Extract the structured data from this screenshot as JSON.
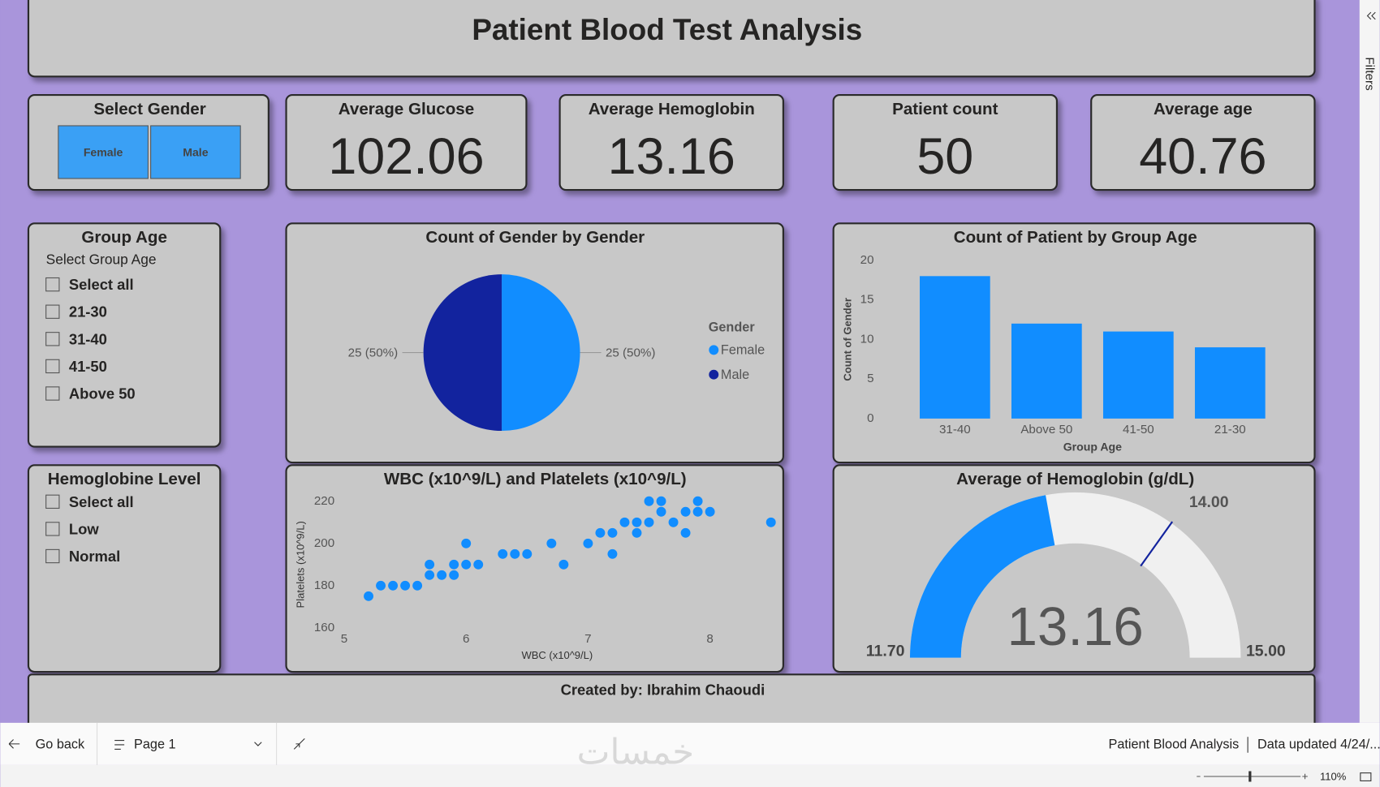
{
  "header": {
    "title": "Patient Blood Test Analysis"
  },
  "filters_pane": {
    "label": "Filters"
  },
  "gender_slicer": {
    "title": "Select Gender",
    "options": [
      "Female",
      "Male"
    ]
  },
  "cards": [
    {
      "title": "Average Glucose",
      "value": 102.06
    },
    {
      "title": "Average Hemoglobin",
      "value": 13.16
    },
    {
      "title": "Patient count",
      "value": 50
    },
    {
      "title": "Average age",
      "value": 40.76
    }
  ],
  "group_age_slicer": {
    "title": "Group Age",
    "subtitle": "Select Group Age",
    "options": [
      "Select all",
      "21-30",
      "31-40",
      "41-50",
      "Above 50"
    ]
  },
  "hemoglobin_slicer": {
    "title": "Hemoglobine Level",
    "options": [
      "Select all",
      "Low",
      "Normal"
    ]
  },
  "chart_data": [
    {
      "type": "pie",
      "title": "Count of Gender by Gender",
      "legend_title": "Gender",
      "categories": [
        "Female",
        "Male"
      ],
      "values": [
        25,
        25
      ],
      "value_labels": [
        "25 (50%)",
        "25 (50%)"
      ],
      "colors": [
        "#118DFF",
        "#12239E"
      ]
    },
    {
      "type": "bar",
      "title": "Count of Patient by Group Age",
      "x_label": "Group Age",
      "y_label": "Count of Gender",
      "categories": [
        "31-40",
        "Above 50",
        "41-50",
        "21-30"
      ],
      "values": [
        18,
        12,
        11,
        9
      ],
      "color": "#118DFF",
      "ylim": [
        0,
        20
      ],
      "yticks": [
        0,
        5,
        10,
        15,
        20
      ],
      "grid": false
    },
    {
      "type": "scatter",
      "title": "WBC (x10^9/L) and Platelets (x10^9/L)",
      "x_label": "WBC (x10^9/L)",
      "y_label": "Platelets (x10^9/L)",
      "x": [
        5.2,
        5.3,
        5.4,
        5.5,
        5.6,
        5.7,
        5.7,
        5.8,
        5.9,
        5.9,
        6.0,
        6.0,
        6.1,
        6.3,
        6.4,
        6.5,
        6.7,
        6.8,
        7.0,
        7.1,
        7.2,
        7.2,
        7.3,
        7.4,
        7.4,
        7.5,
        7.5,
        7.6,
        7.6,
        7.7,
        7.8,
        7.8,
        7.9,
        7.9,
        8.0,
        8.5
      ],
      "values": [
        175,
        180,
        180,
        180,
        180,
        190,
        185,
        185,
        190,
        185,
        200,
        190,
        190,
        195,
        195,
        195,
        200,
        190,
        200,
        205,
        195,
        205,
        210,
        210,
        205,
        220,
        210,
        215,
        220,
        210,
        215,
        205,
        220,
        215,
        215,
        210
      ],
      "color": "#118DFF",
      "xlim": [
        4.95,
        8.5
      ],
      "ylim": [
        157,
        221
      ],
      "xticks": [
        5,
        6,
        7,
        8
      ],
      "yticks": [
        160,
        180,
        200,
        220
      ],
      "grid": false
    },
    {
      "type": "gauge",
      "title": "Average of Hemoglobin (g/dL)",
      "range": [
        {
          "value": 11.7,
          "label": "11.70"
        },
        {
          "value": 15,
          "label": "15.00"
        }
      ],
      "target": {
        "value": 14,
        "label": "14.00"
      },
      "value": 13.16,
      "fill_color": "#118DFF",
      "track_color": "#F0F0F0",
      "target_color": "#12239E"
    }
  ],
  "footer": {
    "text": "Created by: Ibrahim Chaoudi"
  },
  "status_bar": {
    "back": "Go back",
    "page": "Page 1",
    "report": "Patient Blood Analysis",
    "updated": "Data updated 4/24/...",
    "zoom": "110%"
  },
  "watermark": "خمسات"
}
